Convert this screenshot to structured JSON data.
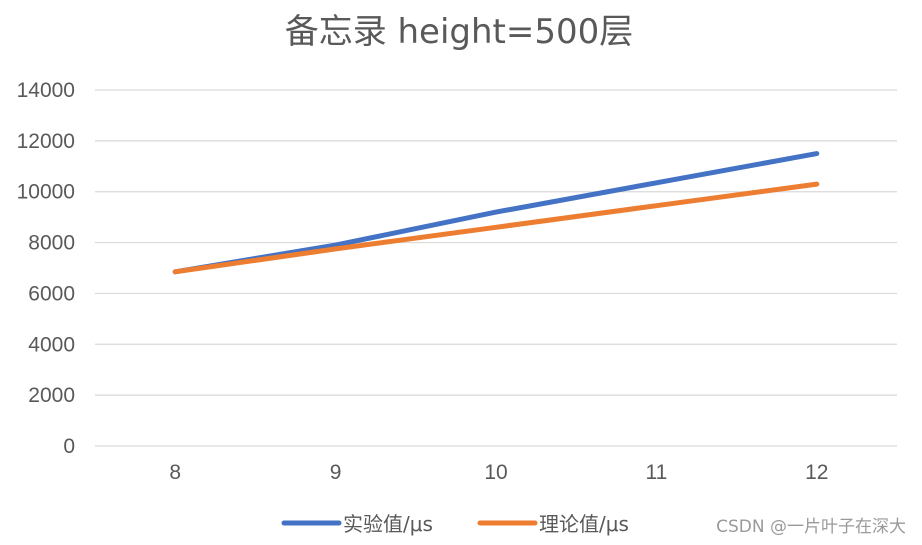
{
  "chart_data": {
    "type": "line",
    "title": "备忘录 height=500层",
    "xlabel": "",
    "ylabel": "",
    "categories": [
      "8",
      "9",
      "10",
      "11",
      "12"
    ],
    "x": [
      8,
      9,
      10,
      11,
      12
    ],
    "ylim": [
      0,
      14000
    ],
    "yticks": [
      0,
      2000,
      4000,
      6000,
      8000,
      10000,
      12000,
      14000
    ],
    "yticks_labels": [
      "0",
      "2000",
      "4000",
      "6000",
      "8000",
      "10000",
      "12000",
      "14000"
    ],
    "grid": true,
    "legend_position": "bottom",
    "series": [
      {
        "name": "实验值/μs",
        "color": "#4472c4",
        "values": [
          6850,
          7900,
          9200,
          10350,
          11500
        ]
      },
      {
        "name": "理论值/μs",
        "color": "#ed7d31",
        "values": [
          6850,
          7750,
          8600,
          9450,
          10300
        ]
      }
    ]
  },
  "watermark": "CSDN @一片叶子在深大"
}
